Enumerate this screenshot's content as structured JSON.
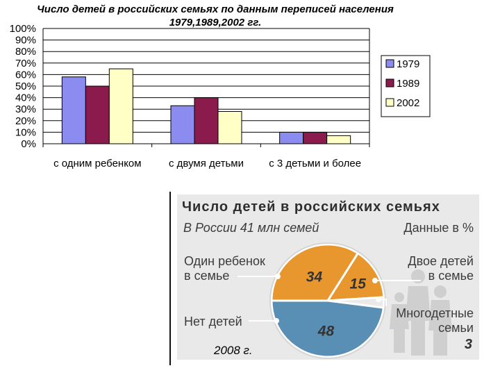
{
  "chart_data": [
    {
      "type": "bar",
      "title": "Число детей в российских семьях по данным переписей населения 1979,1989,2002 гг.",
      "categories": [
        "с одним ребенком",
        "с двумя детьми",
        "с 3 детьми и более"
      ],
      "series": [
        {
          "name": "1979",
          "values": [
            58,
            33,
            10
          ],
          "color": "#8b8bf0"
        },
        {
          "name": "1989",
          "values": [
            50,
            40,
            10
          ],
          "color": "#8b1a4d"
        },
        {
          "name": "2002",
          "values": [
            65,
            28,
            7
          ],
          "color": "#ffffc6"
        }
      ],
      "y_ticks": [
        "0%",
        "10%",
        "20%",
        "30%",
        "40%",
        "50%",
        "60%",
        "70%",
        "80%",
        "90%",
        "100%"
      ],
      "ylim": [
        0,
        100
      ],
      "grid": true,
      "legend_position": "right"
    },
    {
      "type": "pie",
      "title": "Число детей в российских семьях",
      "subtitle": "В России 41 млн семей",
      "units": "Данные в %",
      "slices": [
        {
          "label": "Один ребенок в семье",
          "value": 34,
          "color": "#e8962e"
        },
        {
          "label": "Двое детей в семье",
          "value": 15,
          "color": "#e8962e"
        },
        {
          "label": "Многодетные семьи",
          "value": 3,
          "color": "#eaeaea"
        },
        {
          "label": "Нет детей",
          "value": 48,
          "color": "#5a8fb5"
        }
      ],
      "annotation": "2008 г."
    }
  ],
  "labels": {
    "one": [
      "Один ребенок",
      "в семье"
    ],
    "two": [
      "Двое детей",
      "в семье"
    ],
    "many": [
      "Многодетные",
      "семьи"
    ],
    "none": "Нет детей",
    "many_value": "3"
  }
}
